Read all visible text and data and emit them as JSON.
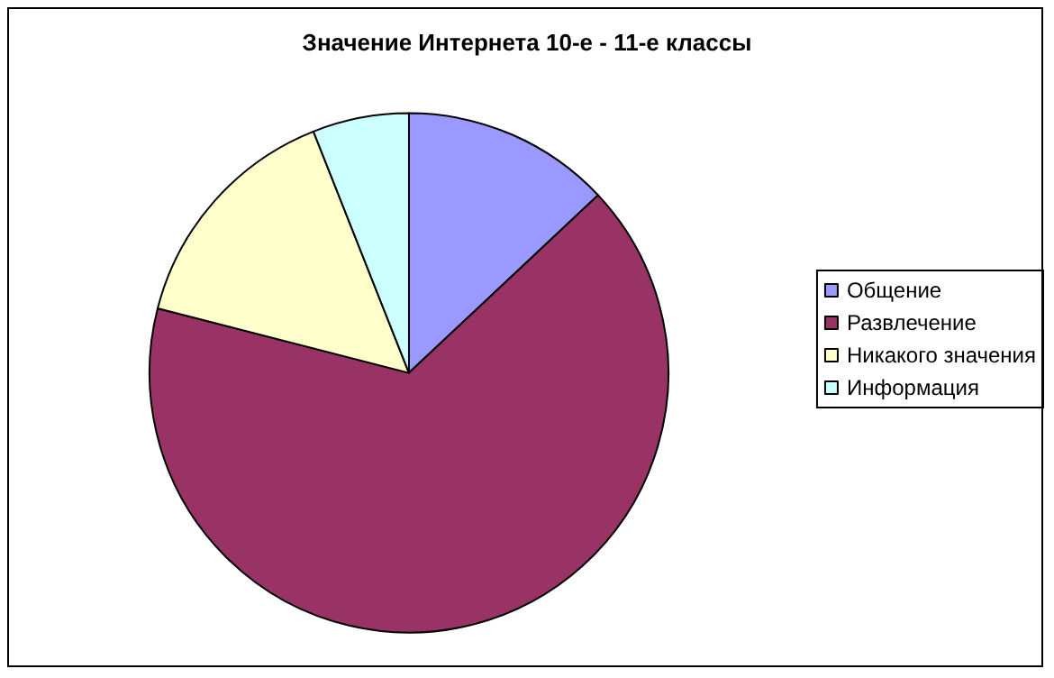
{
  "chart_data": {
    "type": "pie",
    "title": "Значение Интернета 10-е - 11-е классы",
    "categories": [
      "Общение",
      "Развлечение",
      "Никакого значения",
      "Информация"
    ],
    "values": [
      13,
      66,
      15,
      6
    ],
    "colors": [
      "#9999ff",
      "#993366",
      "#ffffcc",
      "#ccffff"
    ],
    "legend": "right"
  }
}
